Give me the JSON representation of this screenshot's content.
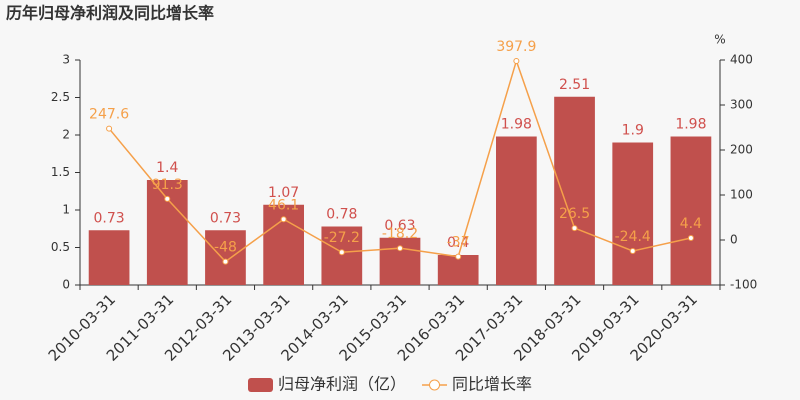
{
  "chart_data": {
    "type": "combo",
    "title": "历年归母净利润及同比增长率",
    "y2_label": "%",
    "categories": [
      "2010-03-31",
      "2011-03-31",
      "2012-03-31",
      "2013-03-31",
      "2014-03-31",
      "2015-03-31",
      "2016-03-31",
      "2017-03-31",
      "2018-03-31",
      "2019-03-31",
      "2020-03-31"
    ],
    "series": [
      {
        "name": "归母净利润（亿）",
        "type": "bar",
        "color": "#c0504d",
        "label_color": "#d0504d",
        "values": [
          0.73,
          1.4,
          0.73,
          1.07,
          0.78,
          0.63,
          0.4,
          1.98,
          2.51,
          1.9,
          1.98
        ]
      },
      {
        "name": "同比增长率",
        "type": "line",
        "axis": "y2",
        "color": "#f5a04a",
        "label_color": "#f5a04a",
        "values": [
          247.6,
          91.3,
          -48,
          46.1,
          -27.2,
          -18.2,
          -37,
          397.9,
          26.5,
          -24.4,
          4.4
        ]
      }
    ],
    "ylim": [
      0,
      3
    ],
    "yticks": [
      0,
      0.5,
      1,
      1.5,
      2,
      2.5,
      3
    ],
    "y2lim": [
      -100,
      400
    ],
    "y2ticks": [
      -100,
      0,
      100,
      200,
      300,
      400
    ]
  }
}
